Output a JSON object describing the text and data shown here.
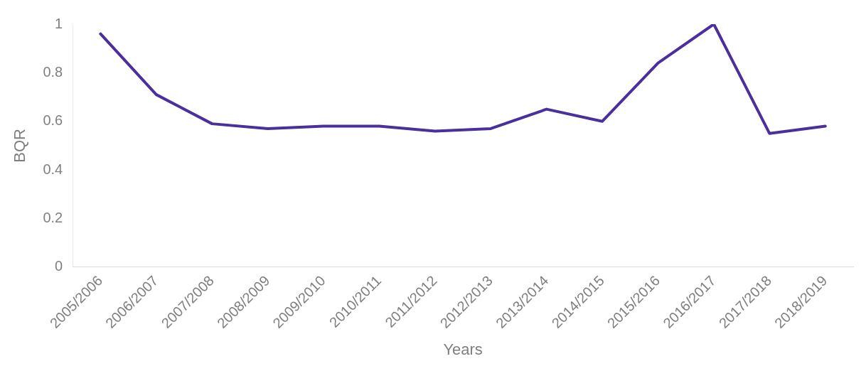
{
  "chart_data": {
    "type": "line",
    "xlabel": "Years",
    "ylabel": "BQR",
    "categories": [
      "2005/2006",
      "2006/2007",
      "2007/2008",
      "2008/2009",
      "2009/2010",
      "2010/2011",
      "2011/2012",
      "2012/2013",
      "2013/2014",
      "2014/2015",
      "2015/2016",
      "2016/2017",
      "2017/2018",
      "2018/2019"
    ],
    "series": [
      {
        "color": "#4b2f9c",
        "values": [
          0.96,
          0.71,
          0.59,
          0.57,
          0.58,
          0.58,
          0.56,
          0.57,
          0.65,
          0.6,
          0.84,
          1.0,
          0.55,
          0.58
        ]
      }
    ],
    "ylim": [
      0,
      1
    ],
    "yticks": [
      0,
      {
        "value": 0.2,
        "label": "0.2"
      },
      {
        "value": 0.4,
        "label": "0.4"
      },
      {
        "value": 0.6,
        "label": "0.6"
      },
      {
        "value": 0.8,
        "label": "0.8"
      },
      1
    ],
    "grid": false,
    "legend": false,
    "marker": "none",
    "line_style": "solid"
  }
}
